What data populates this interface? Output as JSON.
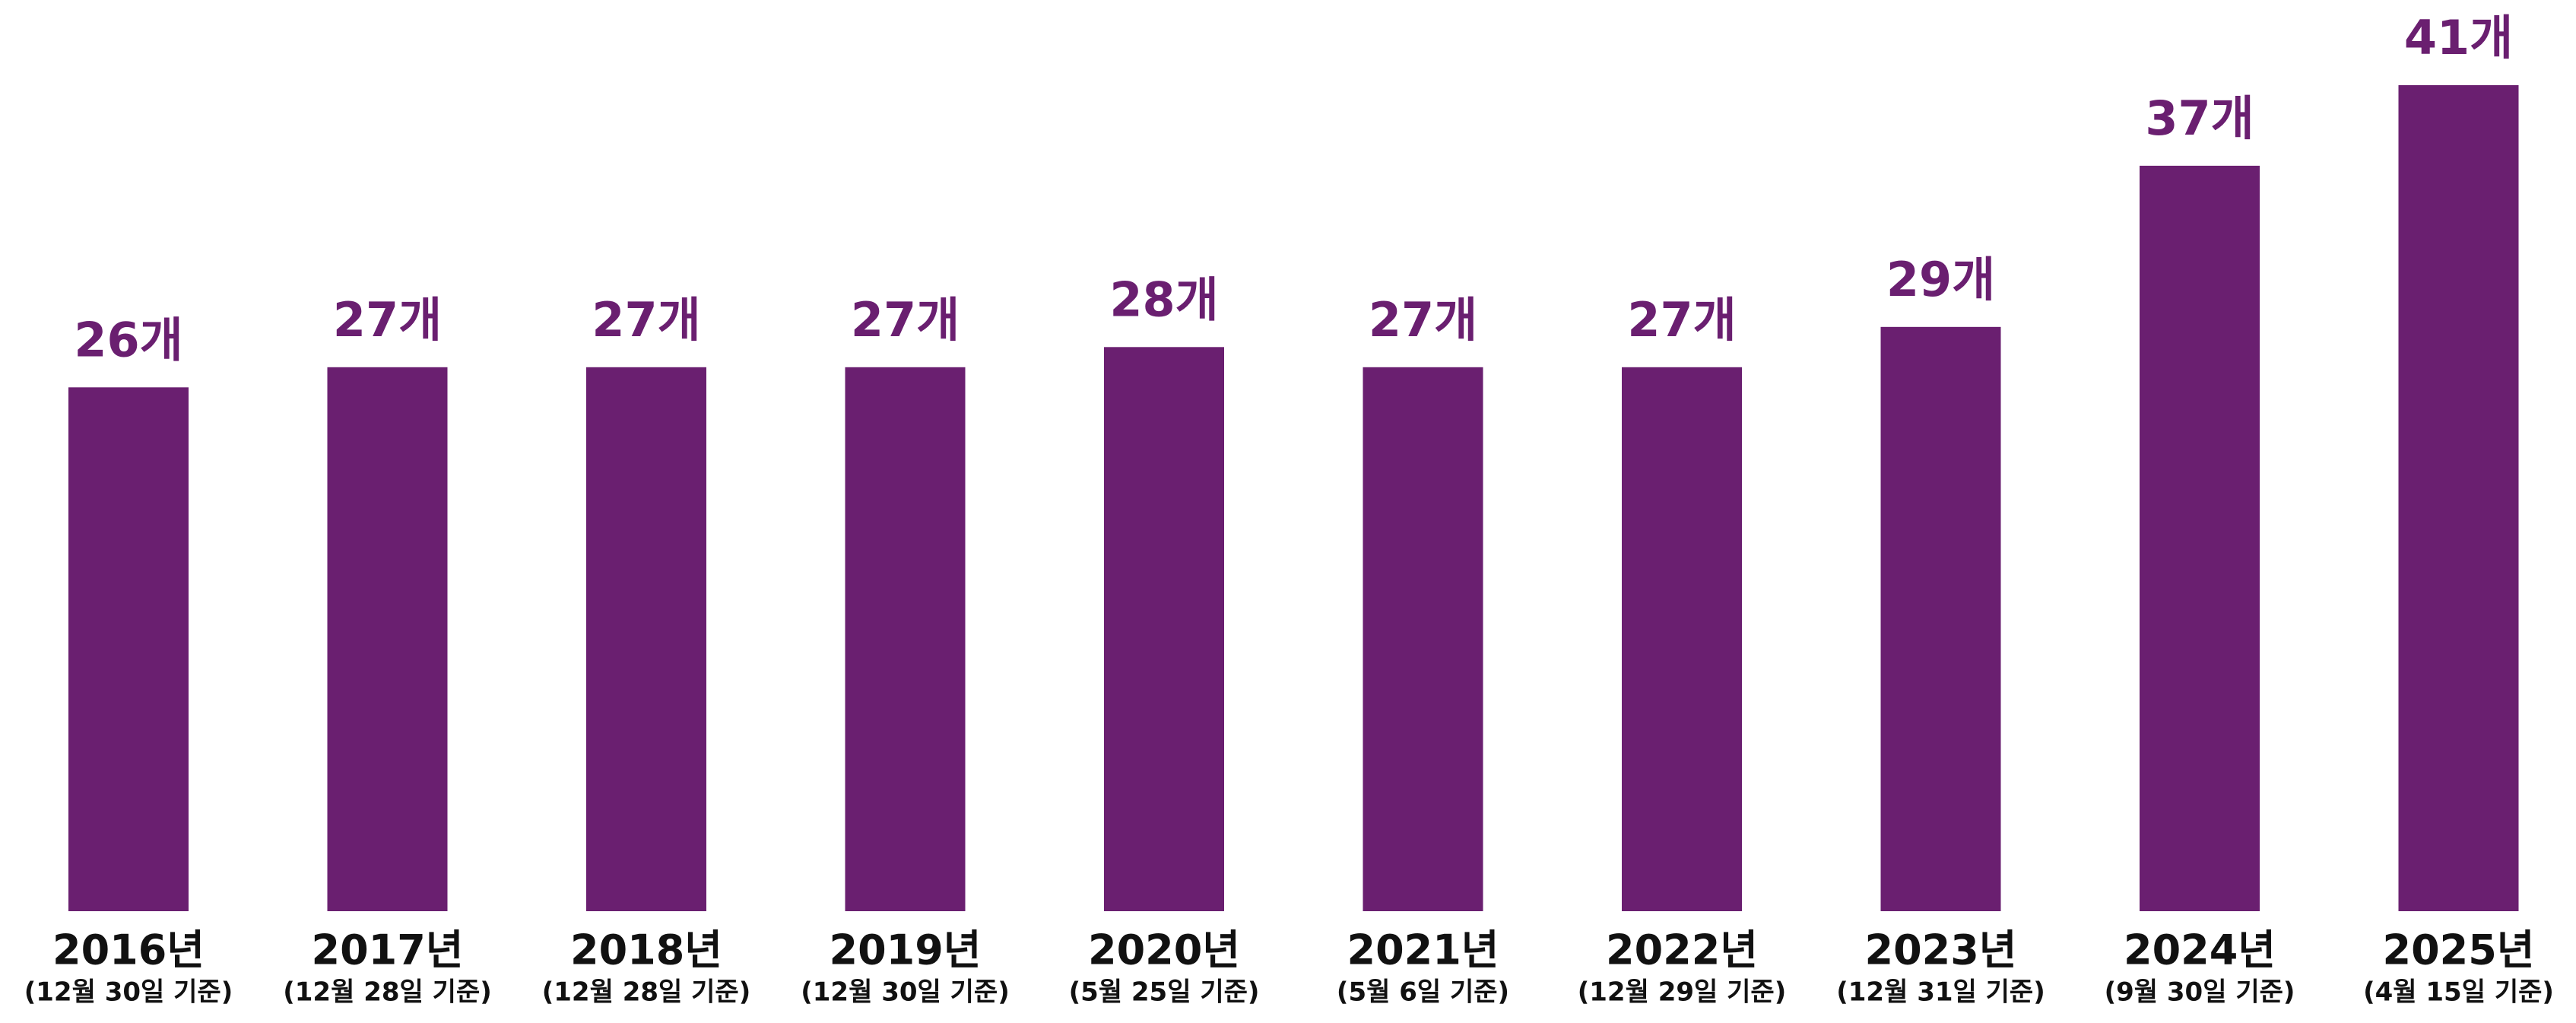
{
  "chart_data": {
    "type": "bar",
    "categories": [
      "2016년",
      "2017년",
      "2018년",
      "2019년",
      "2020년",
      "2021년",
      "2022년",
      "2023년",
      "2024년",
      "2025년"
    ],
    "category_notes": [
      "(12월 30일 기준)",
      "(12월 28일 기준)",
      "(12월 28일 기준)",
      "(12월 30일 기준)",
      "(5월 25일 기준)",
      "(5월 6일 기준)",
      "(12월 29일 기준)",
      "(12월 31일 기준)",
      "(9월 30일 기준)",
      "(4월 15일 기준)"
    ],
    "values": [
      26,
      27,
      27,
      27,
      28,
      27,
      27,
      29,
      37,
      41
    ],
    "value_labels": [
      "26개",
      "27개",
      "27개",
      "27개",
      "28개",
      "27개",
      "27개",
      "29개",
      "37개",
      "41개"
    ],
    "color": "#6a1f70",
    "ylim": [
      0,
      45
    ]
  }
}
